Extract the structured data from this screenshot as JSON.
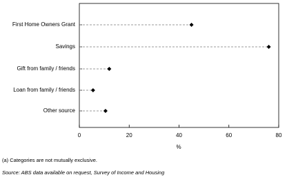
{
  "chart_data": {
    "type": "dot",
    "categories": [
      "First Home Owners Grant",
      "Savings",
      "Gift from family / friends",
      "Loan from family / friends",
      "Other source"
    ],
    "values": [
      45,
      76,
      12,
      5.5,
      10.5
    ],
    "color": "#000000",
    "xlabel": "%",
    "xlim": [
      0,
      80
    ],
    "xticks": [
      0,
      20,
      40,
      60,
      80
    ],
    "notes": [
      "(a) Categories are not mutually exclusive.",
      "Source: ABS data available on request, Survey of Income and Housing"
    ]
  }
}
